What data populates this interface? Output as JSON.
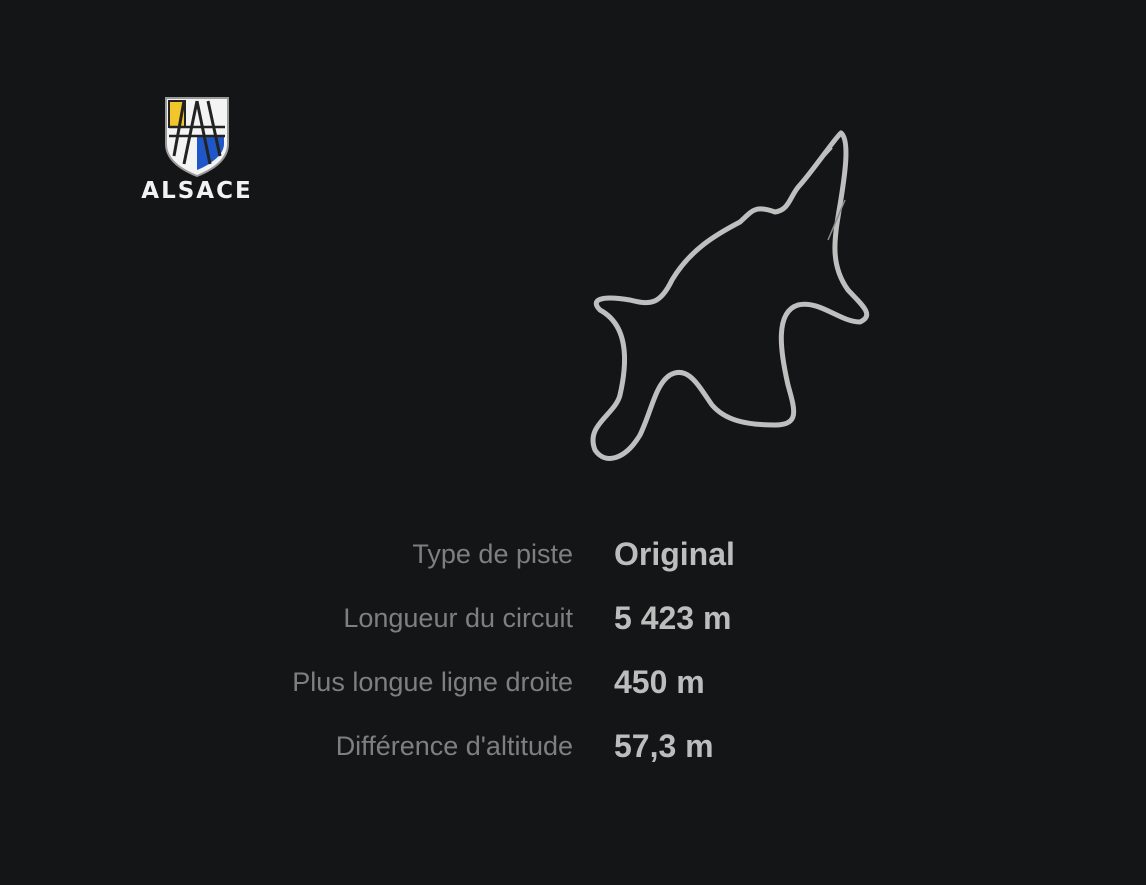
{
  "circuit": {
    "logo_text": "ALSACE",
    "crest_colors": {
      "yellow": "#f2c52b",
      "blue": "#1f57c8",
      "white": "#f4f4f4",
      "outline": "#222222"
    },
    "map_color": "#bfbfbf"
  },
  "specs": [
    {
      "label": "Type de piste",
      "value": "Original"
    },
    {
      "label": "Longueur du circuit",
      "value": "5 423 m"
    },
    {
      "label": "Plus longue ligne droite",
      "value": "450 m"
    },
    {
      "label": "Différence d'altitude",
      "value": "57,3 m"
    }
  ]
}
